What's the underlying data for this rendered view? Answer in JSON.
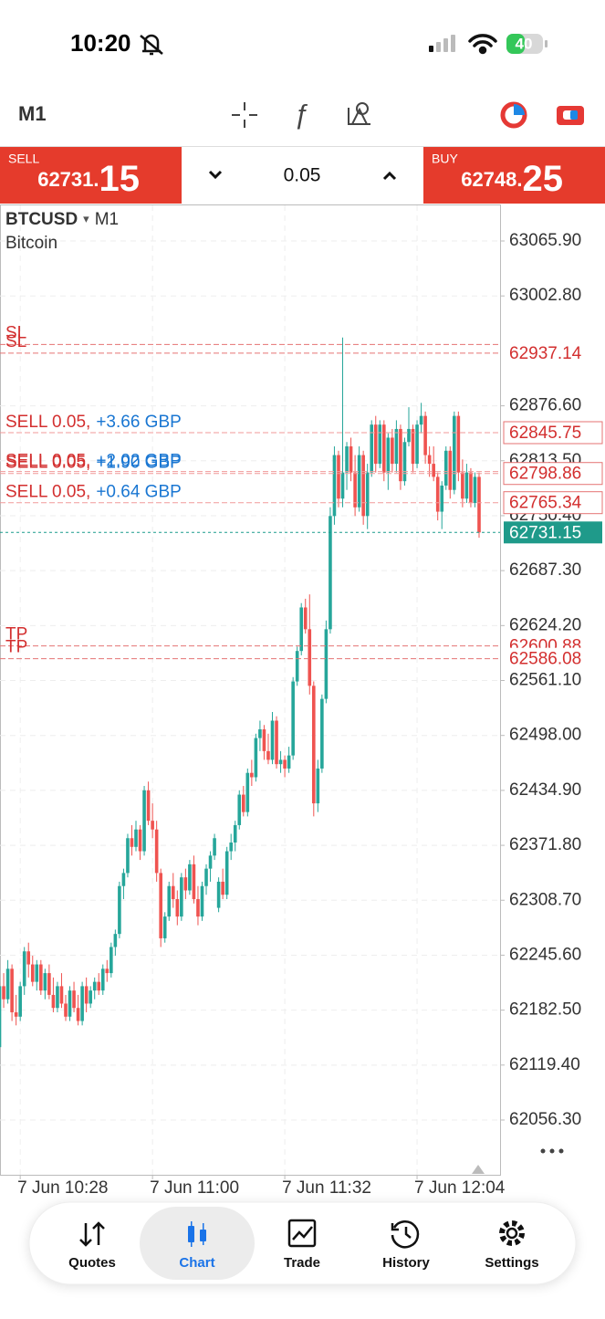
{
  "status_bar": {
    "time": "10:20",
    "battery": "40"
  },
  "toolbar": {
    "timeframe": "M1"
  },
  "trade_bar": {
    "sell_label": "SELL",
    "sell_price_main": "62731.",
    "sell_price_big": "15",
    "volume": "0.05",
    "buy_label": "BUY",
    "buy_price_main": "62748.",
    "buy_price_big": "25"
  },
  "chart_data": {
    "type": "candlestick",
    "symbol": "BTCUSD",
    "timeframe": "M1",
    "description": "Bitcoin",
    "up_color": "#26a69a",
    "down_color": "#ef5350",
    "grid": true,
    "ylim": [
      61993.4,
      63106.8
    ],
    "yticks": [
      {
        "value": 63065.9,
        "label": "63065.90"
      },
      {
        "value": 63002.8,
        "label": "63002.80"
      },
      {
        "value": 62876.6,
        "label": "62876.60"
      },
      {
        "value": 62813.5,
        "label": "62813.50"
      },
      {
        "value": 62750.4,
        "label": "62750.40"
      },
      {
        "value": 62687.3,
        "label": "62687.30"
      },
      {
        "value": 62624.2,
        "label": "62624.20"
      },
      {
        "value": 62561.1,
        "label": "62561.10"
      },
      {
        "value": 62498,
        "label": "62498.00"
      },
      {
        "value": 62434.9,
        "label": "62434.90"
      },
      {
        "value": 62371.8,
        "label": "62371.80"
      },
      {
        "value": 62308.7,
        "label": "62308.70"
      },
      {
        "value": 62245.6,
        "label": "62245.60"
      },
      {
        "value": 62182.5,
        "label": "62182.50"
      },
      {
        "value": 62119.4,
        "label": "62119.40"
      },
      {
        "value": 62056.3,
        "label": "62056.30"
      }
    ],
    "categories": [
      null,
      null,
      null,
      null,
      null,
      "7 Jun 10:28",
      null,
      null,
      null,
      null,
      null,
      null,
      null,
      null,
      null,
      null,
      null,
      null,
      null,
      null,
      null,
      null,
      null,
      null,
      null,
      null,
      null,
      null,
      null,
      null,
      null,
      null,
      null,
      null,
      null,
      null,
      null,
      "7 Jun 11:00",
      null,
      null,
      null,
      null,
      null,
      null,
      null,
      null,
      null,
      null,
      null,
      null,
      null,
      null,
      null,
      null,
      null,
      null,
      null,
      null,
      null,
      null,
      null,
      null,
      null,
      null,
      null,
      null,
      null,
      null,
      null,
      "7 Jun 11:32",
      null,
      null,
      null,
      null,
      null,
      null,
      null,
      null,
      null,
      null,
      null,
      null,
      null,
      null,
      null,
      null,
      null,
      null,
      null,
      null,
      null,
      null,
      null,
      null,
      null,
      null,
      null,
      null,
      null,
      null,
      null,
      "7 Jun 12:04",
      null,
      null,
      null,
      null,
      null,
      null,
      null,
      null,
      null,
      null,
      null,
      null,
      null,
      null,
      null
    ],
    "ohlc": [
      [
        62140,
        62215,
        62110,
        62210
      ],
      [
        62210,
        62225,
        62185,
        62195
      ],
      [
        62195,
        62240,
        62190,
        62230
      ],
      [
        62230,
        62235,
        62170,
        62180
      ],
      [
        62180,
        62200,
        62165,
        62175
      ],
      [
        62175,
        62215,
        62170,
        62210
      ],
      [
        62210,
        62255,
        62200,
        62250
      ],
      [
        62250,
        62260,
        62220,
        62235
      ],
      [
        62235,
        62245,
        62210,
        62215
      ],
      [
        62215,
        62240,
        62205,
        62235
      ],
      [
        62235,
        62240,
        62200,
        62205
      ],
      [
        62205,
        62230,
        62195,
        62225
      ],
      [
        62225,
        62235,
        62195,
        62200
      ],
      [
        62200,
        62220,
        62180,
        62185
      ],
      [
        62185,
        62215,
        62180,
        62210
      ],
      [
        62210,
        62225,
        62185,
        62190
      ],
      [
        62190,
        62200,
        62170,
        62175
      ],
      [
        62175,
        62210,
        62170,
        62205
      ],
      [
        62205,
        62215,
        62180,
        62185
      ],
      [
        62185,
        62200,
        62165,
        62170
      ],
      [
        62170,
        62215,
        62165,
        62210
      ],
      [
        62210,
        62220,
        62180,
        62190
      ],
      [
        62190,
        62210,
        62185,
        62205
      ],
      [
        62205,
        62220,
        62195,
        62215
      ],
      [
        62215,
        62225,
        62200,
        62205
      ],
      [
        62205,
        62235,
        62200,
        62230
      ],
      [
        62230,
        62240,
        62215,
        62225
      ],
      [
        62225,
        62260,
        62220,
        62255
      ],
      [
        62255,
        62275,
        62245,
        62270
      ],
      [
        62270,
        62330,
        62265,
        62325
      ],
      [
        62325,
        62345,
        62310,
        62340
      ],
      [
        62340,
        62385,
        62335,
        62380
      ],
      [
        62380,
        62395,
        62360,
        62370
      ],
      [
        62370,
        62400,
        62365,
        62390
      ],
      [
        62390,
        62395,
        62355,
        62365
      ],
      [
        62365,
        62440,
        62360,
        62435
      ],
      [
        62435,
        62445,
        62395,
        62400
      ],
      [
        62400,
        62420,
        62380,
        62390
      ],
      [
        62390,
        62400,
        62330,
        62340
      ],
      [
        62340,
        62345,
        62255,
        62265
      ],
      [
        62265,
        62295,
        62260,
        62290
      ],
      [
        62290,
        62330,
        62285,
        62325
      ],
      [
        62325,
        62340,
        62300,
        62310
      ],
      [
        62310,
        62320,
        62280,
        62290
      ],
      [
        62290,
        62340,
        62285,
        62335
      ],
      [
        62335,
        62345,
        62310,
        62320
      ],
      [
        62320,
        62355,
        62315,
        62350
      ],
      [
        62350,
        62360,
        62305,
        62310
      ],
      [
        62310,
        62325,
        62280,
        62290
      ],
      [
        62290,
        62330,
        62285,
        62325
      ],
      [
        62325,
        62350,
        62315,
        62345
      ],
      [
        62345,
        62365,
        62330,
        62360
      ],
      [
        62360,
        62385,
        62355,
        62380
      ],
      [
        62300,
        62335,
        62295,
        62330
      ],
      [
        62330,
        62345,
        62310,
        62315
      ],
      [
        62315,
        62370,
        62310,
        62365
      ],
      [
        62365,
        62385,
        62355,
        62375
      ],
      [
        62375,
        62400,
        62365,
        62395
      ],
      [
        62395,
        62435,
        62390,
        62430
      ],
      [
        62430,
        62440,
        62405,
        62410
      ],
      [
        62410,
        62460,
        62405,
        62455
      ],
      [
        62455,
        62470,
        62440,
        62450
      ],
      [
        62450,
        62500,
        62445,
        62495
      ],
      [
        62495,
        62515,
        62480,
        62505
      ],
      [
        62505,
        62510,
        62470,
        62480
      ],
      [
        62480,
        62500,
        62465,
        62470
      ],
      [
        62470,
        62525,
        62465,
        62515
      ],
      [
        62515,
        62520,
        62460,
        62465
      ],
      [
        62465,
        62480,
        62455,
        62470
      ],
      [
        62470,
        62475,
        62450,
        62460
      ],
      [
        62460,
        62485,
        62455,
        62475
      ],
      [
        62475,
        62565,
        62470,
        62560
      ],
      [
        62560,
        62600,
        62555,
        62595
      ],
      [
        62595,
        62650,
        62590,
        62645
      ],
      [
        62645,
        62655,
        62615,
        62620
      ],
      [
        62620,
        62660,
        62545,
        62555
      ],
      [
        62555,
        62560,
        62405,
        62420
      ],
      [
        62420,
        62470,
        62410,
        62460
      ],
      [
        62460,
        62545,
        62455,
        62540
      ],
      [
        62540,
        62630,
        62535,
        62620
      ],
      [
        62620,
        62760,
        62615,
        62750
      ],
      [
        62750,
        62830,
        62740,
        62820
      ],
      [
        62820,
        62825,
        62760,
        62770
      ],
      [
        62770,
        62955,
        62760,
        62800
      ],
      [
        62800,
        62835,
        62780,
        62830
      ],
      [
        62830,
        62840,
        62790,
        62800
      ],
      [
        62800,
        62820,
        62750,
        62760
      ],
      [
        62760,
        62830,
        62755,
        62820
      ],
      [
        62820,
        62825,
        62740,
        62750
      ],
      [
        62750,
        62810,
        62735,
        62800
      ],
      [
        62800,
        62860,
        62795,
        62855
      ],
      [
        62855,
        62865,
        62800,
        62810
      ],
      [
        62810,
        62860,
        62805,
        62855
      ],
      [
        62855,
        62860,
        62790,
        62800
      ],
      [
        62800,
        62845,
        62780,
        62840
      ],
      [
        62840,
        62850,
        62800,
        62810
      ],
      [
        62810,
        62860,
        62800,
        62850
      ],
      [
        62850,
        62855,
        62780,
        62790
      ],
      [
        62790,
        62840,
        62785,
        62835
      ],
      [
        62835,
        62875,
        62830,
        62850
      ],
      [
        62850,
        62855,
        62800,
        62810
      ],
      [
        62810,
        62860,
        62805,
        62855
      ],
      [
        62855,
        62880,
        62845,
        62865
      ],
      [
        62865,
        62870,
        62810,
        62820
      ],
      [
        62820,
        62830,
        62795,
        62810
      ],
      [
        62810,
        62830,
        62790,
        62795
      ],
      [
        62795,
        62800,
        62745,
        62755
      ],
      [
        62755,
        62790,
        62735,
        62785
      ],
      [
        62785,
        62830,
        62780,
        62825
      ],
      [
        62825,
        62830,
        62770,
        62780
      ],
      [
        62780,
        62870,
        62775,
        62865
      ],
      [
        62865,
        62870,
        62790,
        62800
      ],
      [
        62800,
        62815,
        62760,
        62770
      ],
      [
        62770,
        62810,
        62765,
        62800
      ],
      [
        62800,
        62805,
        62760,
        62765
      ],
      [
        62765,
        62800,
        62760,
        62795
      ],
      [
        62795,
        62800,
        62725,
        62731.15
      ]
    ],
    "stop_losses": [
      {
        "label": "SL",
        "price": 62947
      },
      {
        "label": "SL",
        "price": 62937.14,
        "axis_label": "62937.14"
      }
    ],
    "positions": [
      {
        "side": "SELL 0.05,",
        "profit": "+3.66 GBP",
        "price": 62845.75,
        "axis_label": "62845.75"
      },
      {
        "side": "SELL 0.05,",
        "profit": "+2.02 GBP",
        "price": 62801
      },
      {
        "side": "SELL 0.05,",
        "profit": "+1.90 GBP",
        "price": 62798.86,
        "axis_label": "62798.86"
      },
      {
        "side": "SELL 0.05,",
        "profit": "+0.64 GBP",
        "price": 62765.34,
        "axis_label": "62765.34"
      }
    ],
    "take_profits": [
      {
        "label": "TP",
        "price": 62600.88,
        "axis_label": "62600.88"
      },
      {
        "label": "TP",
        "price": 62586.08,
        "axis_label": "62586.08"
      }
    ],
    "bid": {
      "price": 62731.15,
      "axis_label": "62731.15"
    }
  },
  "tab_bar": {
    "tabs": [
      "Quotes",
      "Chart",
      "Trade",
      "History",
      "Settings"
    ]
  }
}
